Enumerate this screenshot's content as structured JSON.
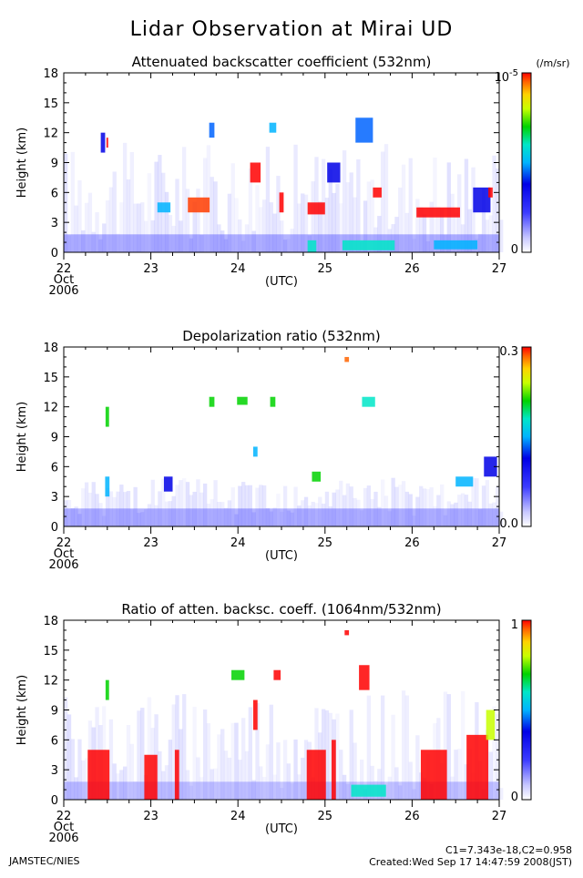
{
  "page": {
    "title": "Lidar Observation at Mirai UD",
    "footer_left": "JAMSTEC/NIES",
    "footer_constants": "C1=7.343e-18,C2=0.958",
    "footer_created": "Created:Wed Sep 17 14:47:59 2008(JST)"
  },
  "chart_data": [
    {
      "type": "heatmap",
      "title": "Attenuated backscatter coefficient (532nm)",
      "ylabel": "Height (km)",
      "xlabel": "(UTC)",
      "x_ticks": [
        "22",
        "23",
        "24",
        "25",
        "26",
        "27"
      ],
      "x_sub": [
        "Oct",
        "2006"
      ],
      "xlim": [
        22,
        27
      ],
      "y_ticks": [
        "0",
        "3",
        "6",
        "9",
        "12",
        "15",
        "18"
      ],
      "ylim": [
        0,
        18
      ],
      "colorbar": {
        "units": "(/m/sr)",
        "max_label": "10",
        "max_exp": "-5",
        "min_label": "0"
      }
    },
    {
      "type": "heatmap",
      "title": "Depolarization ratio (532nm)",
      "ylabel": "Height (km)",
      "xlabel": "(UTC)",
      "x_ticks": [
        "22",
        "23",
        "24",
        "25",
        "26",
        "27"
      ],
      "x_sub": [
        "Oct",
        "2006"
      ],
      "xlim": [
        22,
        27
      ],
      "y_ticks": [
        "0",
        "3",
        "6",
        "9",
        "12",
        "15",
        "18"
      ],
      "ylim": [
        0,
        18
      ],
      "colorbar": {
        "units": "",
        "max_label": "0.3",
        "max_exp": "",
        "min_label": "0.0"
      }
    },
    {
      "type": "heatmap",
      "title": "Ratio of atten. backsc. coeff. (1064nm/532nm)",
      "ylabel": "Height (km)",
      "xlabel": "(UTC)",
      "x_ticks": [
        "22",
        "23",
        "24",
        "25",
        "26",
        "27"
      ],
      "x_sub": [
        "Oct",
        "2006"
      ],
      "xlim": [
        22,
        27
      ],
      "y_ticks": [
        "0",
        "3",
        "6",
        "9",
        "12",
        "15",
        "18"
      ],
      "ylim": [
        0,
        18
      ],
      "colorbar": {
        "units": "",
        "max_label": "1",
        "max_exp": "",
        "min_label": "0"
      }
    }
  ]
}
